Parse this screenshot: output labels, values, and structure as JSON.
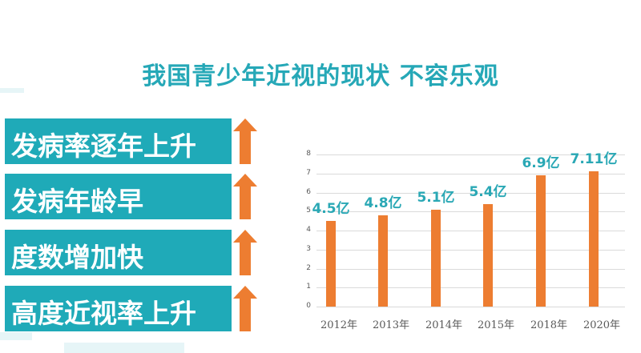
{
  "title": "我国青少年近视的现状 不容乐观",
  "items": [
    {
      "label": "发病率逐年上升",
      "icon": "up-arrow-icon"
    },
    {
      "label": "发病年龄早",
      "icon": "up-arrow-icon"
    },
    {
      "label": "度数增加快",
      "icon": "up-arrow-icon"
    },
    {
      "label": "高度近视率上升",
      "icon": "up-arrow-icon"
    }
  ],
  "colors": {
    "teal": "#1faab8",
    "title": "#26a8b7",
    "orange": "#ed7d31",
    "grid": "#dadada"
  },
  "chart_data": {
    "type": "bar",
    "title": "",
    "categories": [
      "2012年",
      "2013年",
      "2014年",
      "2015年",
      "2018年",
      "2020年"
    ],
    "values": [
      4.5,
      4.8,
      5.1,
      5.4,
      6.9,
      7.11
    ],
    "data_labels": [
      "4.5亿",
      "4.8亿",
      "5.1亿",
      "5.4亿",
      "6.9亿",
      "7.11亿"
    ],
    "xlabel": "",
    "ylabel": "",
    "ylim": [
      0,
      8
    ],
    "yticks": [
      "0",
      "1",
      "2",
      "3",
      "4",
      "5",
      "6",
      "7",
      "8"
    ],
    "grid": true,
    "legend": null,
    "bar_color": "#ed7d31"
  }
}
